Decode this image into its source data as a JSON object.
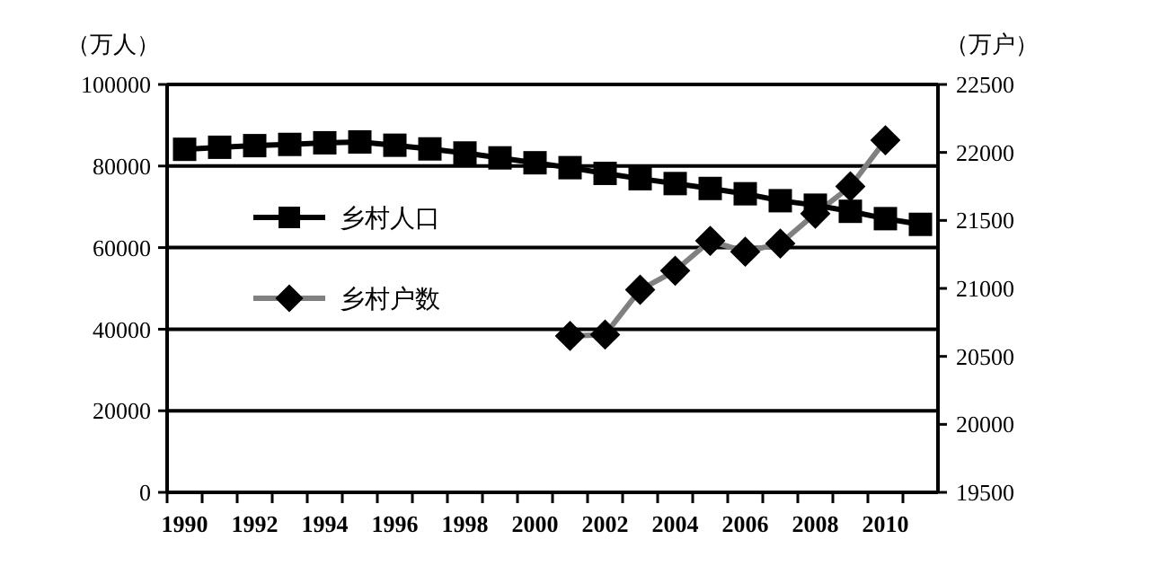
{
  "chart_data": {
    "type": "line",
    "ylabel": "（万人）",
    "y2label": "（万户）",
    "categories": [
      "1990",
      null,
      "1992",
      null,
      "1994",
      null,
      "1996",
      null,
      "1998",
      null,
      "2000",
      null,
      "2002",
      null,
      "2004",
      null,
      "2006",
      null,
      "2008",
      null,
      "2010",
      null
    ],
    "series": [
      {
        "name": "乡村人口",
        "color": "#000000",
        "marker": "square",
        "values": [
          84100,
          84600,
          85000,
          85300,
          85700,
          85900,
          85100,
          84200,
          83200,
          82000,
          80800,
          79600,
          78200,
          76900,
          75700,
          74500,
          73200,
          71500,
          70400,
          68900,
          67100,
          65700
        ]
      },
      {
        "name": "乡村户数",
        "color": "#808080",
        "marker": "diamond",
        "axis": "y2",
        "values": [
          null,
          null,
          null,
          null,
          null,
          null,
          null,
          null,
          null,
          null,
          null,
          20650,
          20660,
          20990,
          21130,
          21350,
          21270,
          21330,
          21550,
          21750,
          22090,
          null
        ]
      }
    ],
    "ylim": [
      0,
      100000
    ],
    "yticks": [
      0,
      20000,
      40000,
      60000,
      80000,
      100000
    ],
    "y2lim": [
      19500,
      22500
    ],
    "y2ticks": [
      19500,
      20000,
      20500,
      21000,
      21500,
      22000,
      22500
    ],
    "grid": "y",
    "legend": "left"
  }
}
